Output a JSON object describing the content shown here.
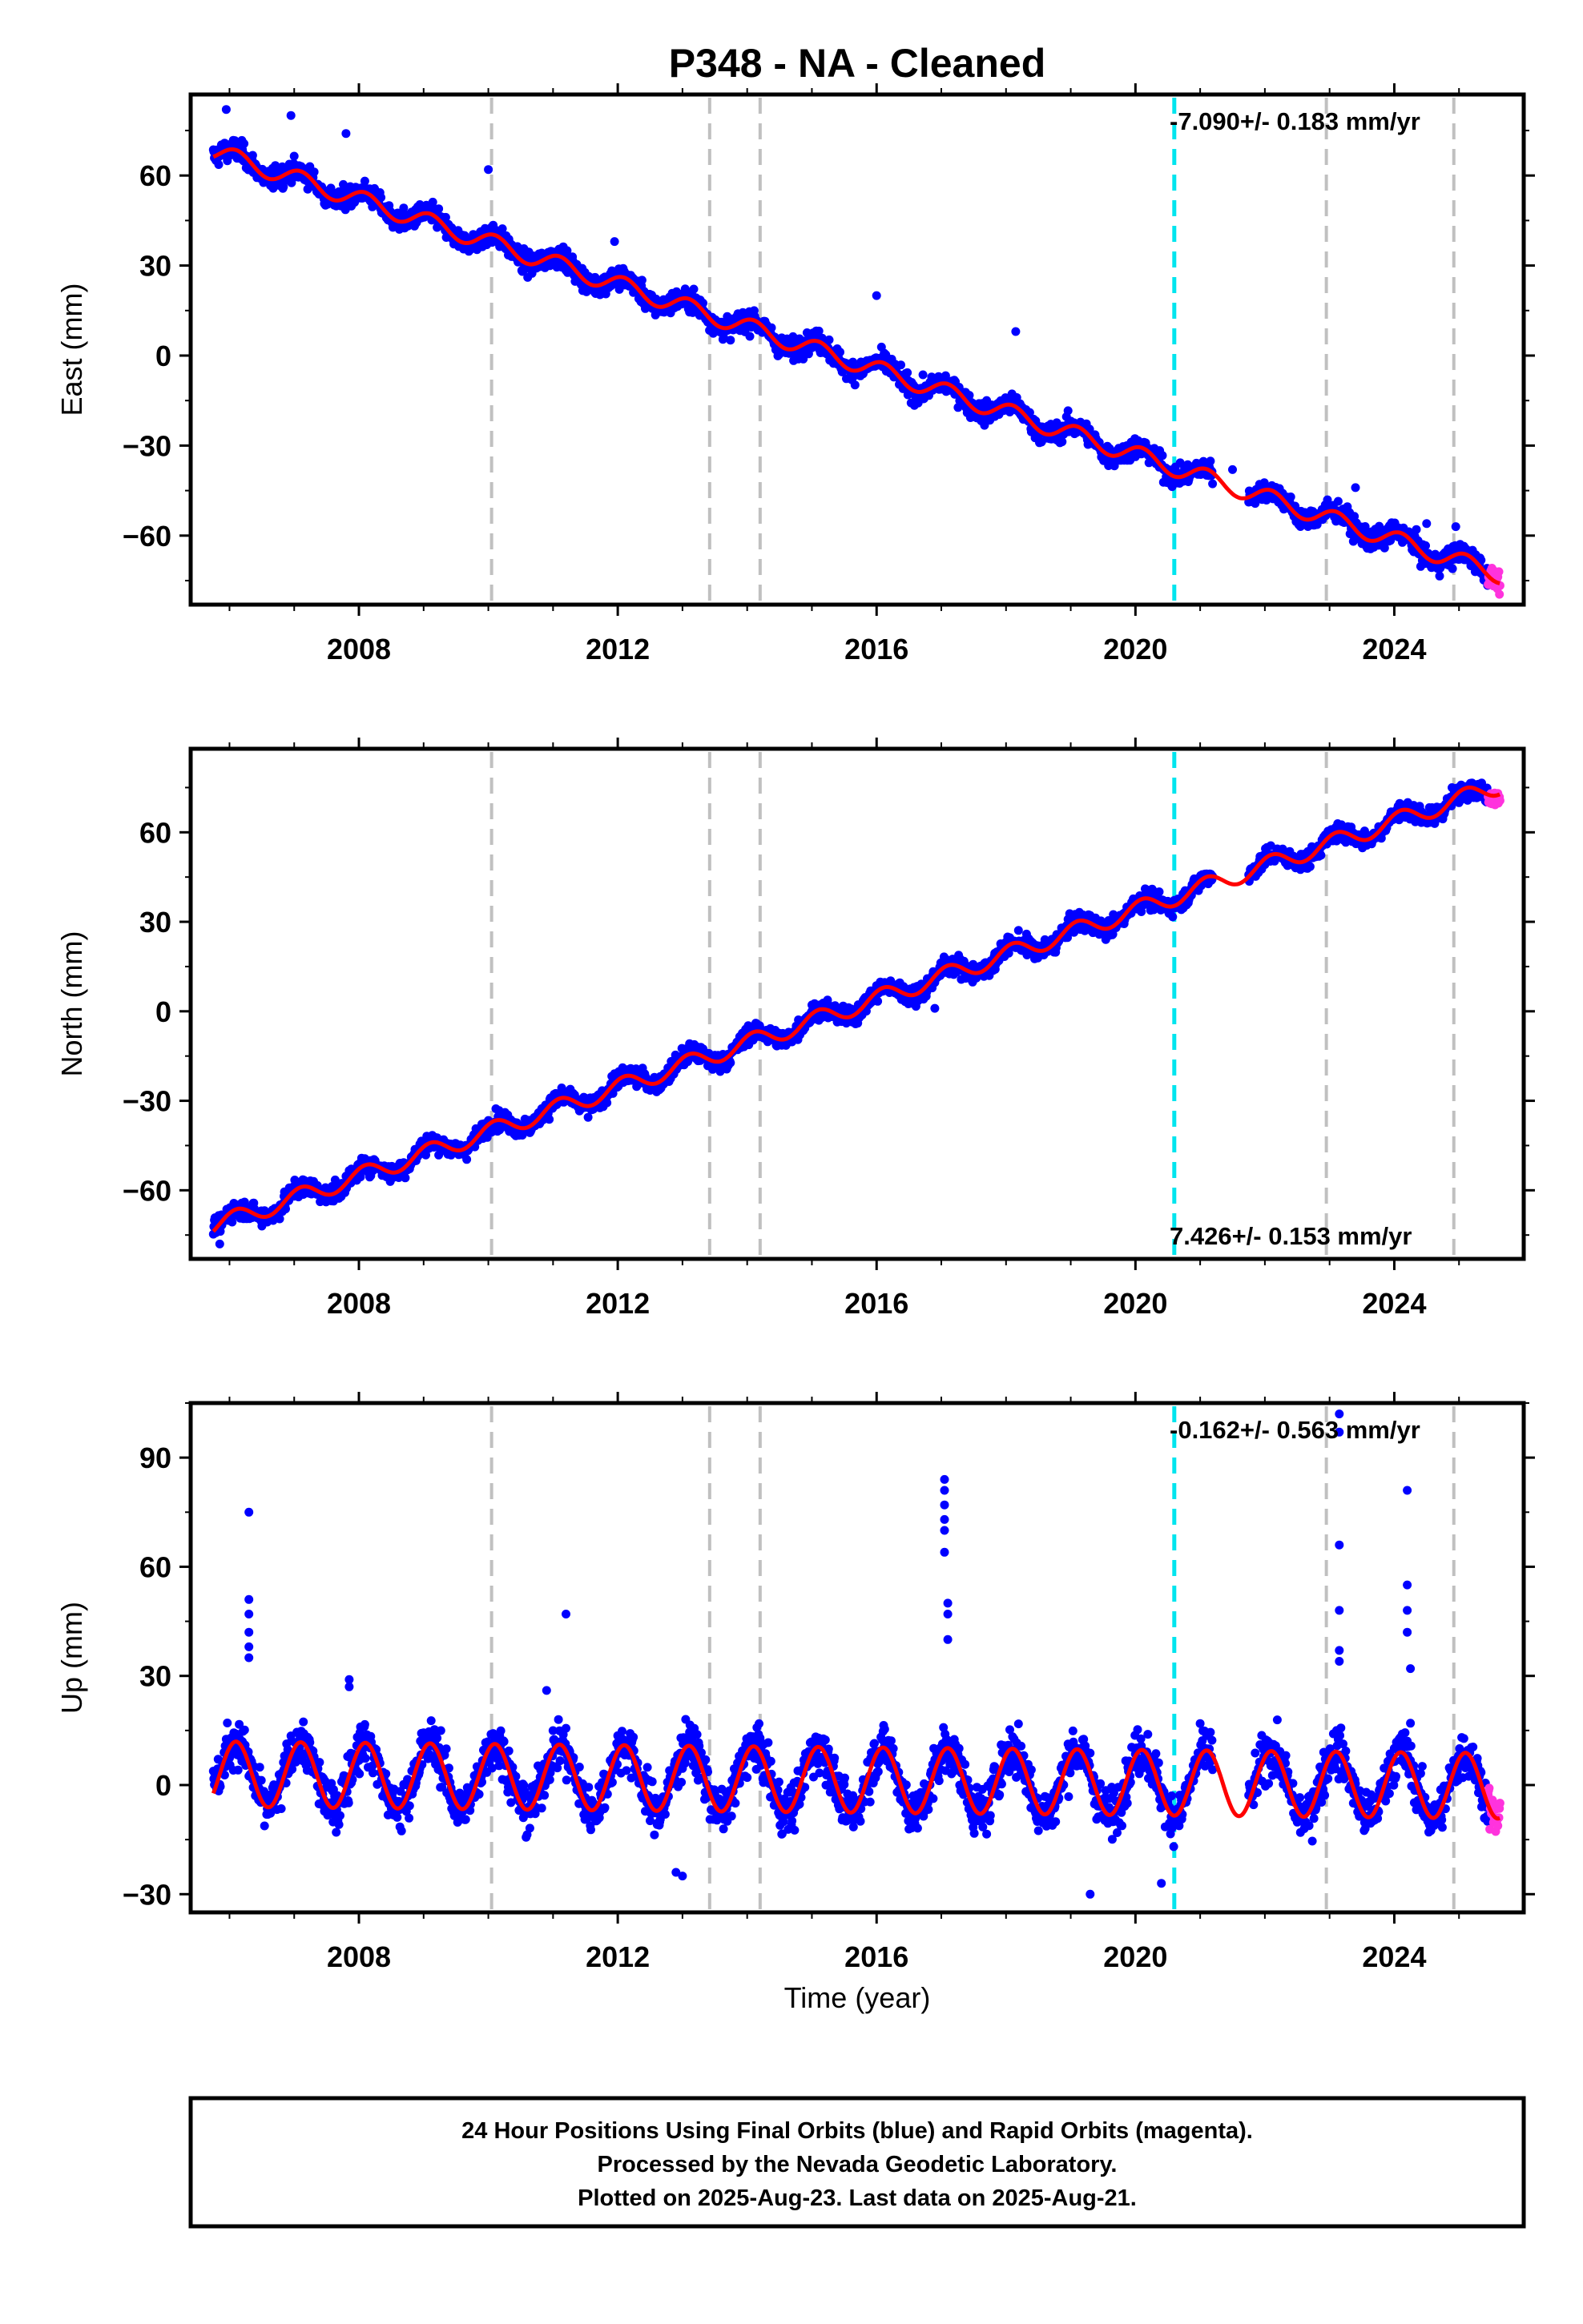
{
  "title": "P348  - NA - Cleaned",
  "xlabel": "Time (year)",
  "footer": [
    "24 Hour Positions Using Final Orbits (blue) and Rapid Orbits (magenta).",
    "Processed by the Nevada Geodetic Laboratory.",
    "Plotted on 2025-Aug-23. Last data on 2025-Aug-21."
  ],
  "colors": {
    "final_orbits": "#0000ff",
    "rapid_orbits": "#ff33dd",
    "model_fit": "#ff0000",
    "event_line": "#c0c0c0",
    "highlight_event": "#00e5ee"
  },
  "chart_data": [
    {
      "type": "scatter",
      "name": "east",
      "ylabel": "East (mm)",
      "rate_label": "-7.090+/- 0.183 mm/yr",
      "rate_position": "top-right",
      "xlim": [
        2005.4,
        2026.0
      ],
      "ylim": [
        -83,
        87
      ],
      "xticks": [
        2008,
        2012,
        2016,
        2020,
        2024
      ],
      "yticks": [
        -60,
        -30,
        0,
        30,
        60
      ],
      "event_lines": [
        2010.05,
        2013.42,
        2014.2,
        2022.95,
        2024.92
      ],
      "highlight_event": 2020.6,
      "data_start": 2005.75,
      "data_end": 2025.64,
      "rapid_start": 2025.45,
      "trend": {
        "value_at_2005_75": 68,
        "rate_mm_per_yr": -7.09
      },
      "annual_amplitude_mm": 3,
      "scatter_mm": 2.5,
      "outliers": [
        [
          2005.95,
          82
        ],
        [
          2006.95,
          80
        ],
        [
          2007.8,
          74
        ],
        [
          2010.0,
          62
        ],
        [
          2011.95,
          38
        ],
        [
          2016.0,
          20
        ],
        [
          2018.15,
          8
        ],
        [
          2021.5,
          -38
        ],
        [
          2023.4,
          -44
        ],
        [
          2024.5,
          -56
        ],
        [
          2024.95,
          -57
        ]
      ]
    },
    {
      "type": "scatter",
      "name": "north",
      "ylabel": "North (mm)",
      "rate_label": "7.426+/- 0.153 mm/yr",
      "rate_position": "bottom-right",
      "xlim": [
        2005.4,
        2026.0
      ],
      "ylim": [
        -83,
        88
      ],
      "xticks": [
        2008,
        2012,
        2016,
        2020,
        2024
      ],
      "yticks": [
        -60,
        -30,
        0,
        30,
        60
      ],
      "event_lines": [
        2010.05,
        2013.42,
        2014.2,
        2022.95,
        2024.92
      ],
      "highlight_event": 2020.6,
      "data_start": 2005.75,
      "data_end": 2025.64,
      "rapid_start": 2025.45,
      "trend": {
        "value_at_2005_75": -72,
        "rate_mm_per_yr": 7.43
      },
      "annual_amplitude_mm": 3,
      "scatter_mm": 2.2,
      "outliers": [
        [
          2005.85,
          -78
        ],
        [
          2006.5,
          -72
        ],
        [
          2016.9,
          1
        ]
      ]
    },
    {
      "type": "scatter",
      "name": "up",
      "ylabel": "Up (mm)",
      "rate_label": "-0.162+/- 0.563 mm/yr",
      "rate_position": "top-right",
      "xlim": [
        2005.4,
        2026.0
      ],
      "ylim": [
        -35,
        105
      ],
      "xticks": [
        2008,
        2012,
        2016,
        2020,
        2024
      ],
      "yticks": [
        -30,
        0,
        30,
        60,
        90
      ],
      "event_lines": [
        2010.05,
        2013.42,
        2014.2,
        2022.95,
        2024.92
      ],
      "highlight_event": 2020.6,
      "data_start": 2005.75,
      "data_end": 2025.64,
      "rapid_start": 2025.45,
      "trend": {
        "value_at_2005_75": 3,
        "rate_mm_per_yr": -0.162
      },
      "annual_amplitude_mm": 9,
      "scatter_mm": 4.5,
      "outliers": [
        [
          2006.3,
          75
        ],
        [
          2006.3,
          51
        ],
        [
          2006.3,
          47
        ],
        [
          2006.3,
          42
        ],
        [
          2006.3,
          38
        ],
        [
          2006.3,
          35
        ],
        [
          2007.85,
          29
        ],
        [
          2007.85,
          27
        ],
        [
          2010.9,
          26
        ],
        [
          2011.2,
          47
        ],
        [
          2012.9,
          -24
        ],
        [
          2013.0,
          -25
        ],
        [
          2017.05,
          84
        ],
        [
          2017.05,
          81
        ],
        [
          2017.05,
          77
        ],
        [
          2017.05,
          73
        ],
        [
          2017.05,
          70
        ],
        [
          2017.05,
          64
        ],
        [
          2017.1,
          50
        ],
        [
          2017.1,
          47
        ],
        [
          2017.1,
          40
        ],
        [
          2023.15,
          102
        ],
        [
          2023.15,
          97
        ],
        [
          2023.15,
          66
        ],
        [
          2023.15,
          48
        ],
        [
          2023.15,
          37
        ],
        [
          2023.15,
          34
        ],
        [
          2024.2,
          81
        ],
        [
          2024.2,
          55
        ],
        [
          2024.2,
          48
        ],
        [
          2024.2,
          42
        ],
        [
          2024.25,
          32
        ],
        [
          2024.25,
          17
        ],
        [
          2019.3,
          -30
        ],
        [
          2020.4,
          -27
        ]
      ]
    }
  ]
}
